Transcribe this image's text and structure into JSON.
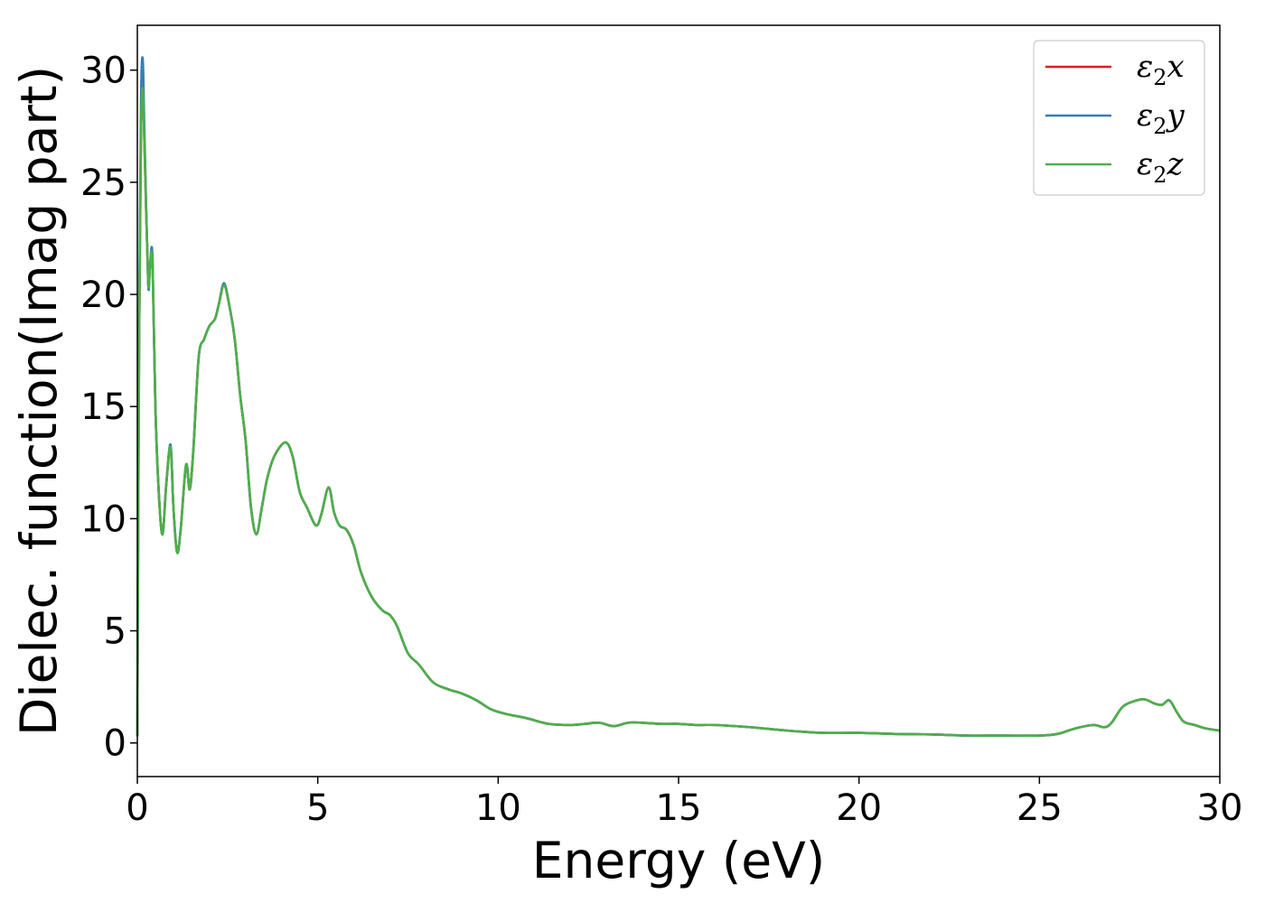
{
  "chart_data": {
    "type": "line",
    "xlabel": "Energy (eV)",
    "ylabel": "Dielec. function(Imag part)",
    "xlim": [
      0,
      30
    ],
    "ylim": [
      -1.5,
      32
    ],
    "xticks": [
      0,
      5,
      10,
      15,
      20,
      25,
      30
    ],
    "yticks": [
      0,
      5,
      10,
      15,
      20,
      25,
      30
    ],
    "grid": false,
    "legend_position": "top-right",
    "series": [
      {
        "name": "x",
        "color": "#e41a1c",
        "x": [
          0,
          0.05,
          0.1,
          0.15,
          0.2,
          0.3,
          0.35,
          0.42,
          0.5,
          0.6,
          0.7,
          0.8,
          0.92,
          1.0,
          1.1,
          1.2,
          1.35,
          1.45,
          1.55,
          1.7,
          1.85,
          2.0,
          2.15,
          2.25,
          2.4,
          2.55,
          2.7,
          2.85,
          3.0,
          3.15,
          3.3,
          3.45,
          3.6,
          3.8,
          4.1,
          4.3,
          4.5,
          4.7,
          4.95,
          5.1,
          5.3,
          5.45,
          5.6,
          5.8,
          6.0,
          6.2,
          6.5,
          6.8,
          7.0,
          7.2,
          7.5,
          7.8,
          8.2,
          8.6,
          9.0,
          9.4,
          9.8,
          10.2,
          10.8,
          11.4,
          12.0,
          12.4,
          12.8,
          13.2,
          13.6,
          14.0,
          14.5,
          15.0,
          15.5,
          16.0,
          17.0,
          18.0,
          19.0,
          20.0,
          21.0,
          22.0,
          23.0,
          24.0,
          25.0,
          25.5,
          26.0,
          26.5,
          26.8,
          27.0,
          27.3,
          27.6,
          27.9,
          28.2,
          28.4,
          28.6,
          28.8,
          29.0,
          29.3,
          29.6,
          30.0
        ],
        "values": [
          0.3,
          18.0,
          27.0,
          29.2,
          26.5,
          20.6,
          21.2,
          21.5,
          15.0,
          11.0,
          9.3,
          11.5,
          13.2,
          10.5,
          8.5,
          9.5,
          12.4,
          11.3,
          13.0,
          17.2,
          18.0,
          18.6,
          18.9,
          19.5,
          20.4,
          19.5,
          18.0,
          15.5,
          13.5,
          10.5,
          9.3,
          10.5,
          11.8,
          12.8,
          13.4,
          12.8,
          11.2,
          10.5,
          9.7,
          10.2,
          11.4,
          10.3,
          9.7,
          9.5,
          8.8,
          7.6,
          6.5,
          5.9,
          5.7,
          5.2,
          4.0,
          3.5,
          2.7,
          2.4,
          2.2,
          1.9,
          1.5,
          1.3,
          1.1,
          0.85,
          0.8,
          0.85,
          0.9,
          0.75,
          0.9,
          0.9,
          0.85,
          0.85,
          0.8,
          0.8,
          0.7,
          0.55,
          0.45,
          0.45,
          0.4,
          0.38,
          0.33,
          0.33,
          0.33,
          0.4,
          0.65,
          0.8,
          0.7,
          0.9,
          1.6,
          1.85,
          1.95,
          1.75,
          1.7,
          1.9,
          1.4,
          0.95,
          0.8,
          0.65,
          0.55
        ]
      },
      {
        "name": "y",
        "color": "#377eb8",
        "x": [
          0,
          0.05,
          0.1,
          0.15,
          0.2,
          0.3,
          0.35,
          0.42,
          0.5,
          0.6,
          0.7,
          0.8,
          0.92,
          1.0,
          1.1,
          1.2,
          1.35,
          1.45,
          1.55,
          1.7,
          1.85,
          2.0,
          2.15,
          2.25,
          2.4,
          2.55,
          2.7,
          2.85,
          3.0,
          3.15,
          3.3,
          3.45,
          3.6,
          3.8,
          4.1,
          4.3,
          4.5,
          4.7,
          4.95,
          5.1,
          5.3,
          5.45,
          5.6,
          5.8,
          6.0,
          6.2,
          6.5,
          6.8,
          7.0,
          7.2,
          7.5,
          7.8,
          8.2,
          8.6,
          9.0,
          9.4,
          9.8,
          10.2,
          10.8,
          11.4,
          12.0,
          12.4,
          12.8,
          13.2,
          13.6,
          14.0,
          14.5,
          15.0,
          15.5,
          16.0,
          17.0,
          18.0,
          19.0,
          20.0,
          21.0,
          22.0,
          23.0,
          24.0,
          25.0,
          25.5,
          26.0,
          26.5,
          26.8,
          27.0,
          27.3,
          27.6,
          27.9,
          28.2,
          28.4,
          28.6,
          28.8,
          29.0,
          29.3,
          29.6,
          30.0
        ],
        "values": [
          0.3,
          19.0,
          28.5,
          30.5,
          27.0,
          20.5,
          21.3,
          21.7,
          15.0,
          11.0,
          9.3,
          11.5,
          13.3,
          10.5,
          8.5,
          9.5,
          12.4,
          11.3,
          13.0,
          17.2,
          18.0,
          18.6,
          18.9,
          19.5,
          20.5,
          19.5,
          18.0,
          15.5,
          13.5,
          10.5,
          9.3,
          10.5,
          11.8,
          12.8,
          13.4,
          12.8,
          11.2,
          10.5,
          9.7,
          10.2,
          11.4,
          10.3,
          9.7,
          9.5,
          8.8,
          7.6,
          6.5,
          5.9,
          5.7,
          5.2,
          4.0,
          3.5,
          2.7,
          2.4,
          2.2,
          1.9,
          1.5,
          1.3,
          1.1,
          0.85,
          0.8,
          0.85,
          0.9,
          0.75,
          0.9,
          0.9,
          0.85,
          0.85,
          0.8,
          0.8,
          0.7,
          0.55,
          0.45,
          0.45,
          0.4,
          0.38,
          0.33,
          0.33,
          0.33,
          0.4,
          0.65,
          0.8,
          0.7,
          0.9,
          1.6,
          1.85,
          1.95,
          1.75,
          1.7,
          1.9,
          1.4,
          0.95,
          0.8,
          0.65,
          0.55
        ]
      },
      {
        "name": "z",
        "color": "#4daf4a",
        "x": [
          0,
          0.05,
          0.1,
          0.15,
          0.2,
          0.3,
          0.35,
          0.42,
          0.5,
          0.6,
          0.7,
          0.8,
          0.92,
          1.0,
          1.1,
          1.2,
          1.35,
          1.45,
          1.55,
          1.7,
          1.85,
          2.0,
          2.15,
          2.25,
          2.4,
          2.55,
          2.7,
          2.85,
          3.0,
          3.15,
          3.3,
          3.45,
          3.6,
          3.8,
          4.1,
          4.3,
          4.5,
          4.7,
          4.95,
          5.1,
          5.3,
          5.45,
          5.6,
          5.8,
          6.0,
          6.2,
          6.5,
          6.8,
          7.0,
          7.2,
          7.5,
          7.8,
          8.2,
          8.6,
          9.0,
          9.4,
          9.8,
          10.2,
          10.8,
          11.4,
          12.0,
          12.4,
          12.8,
          13.2,
          13.6,
          14.0,
          14.5,
          15.0,
          15.5,
          16.0,
          17.0,
          18.0,
          19.0,
          20.0,
          21.0,
          22.0,
          23.0,
          24.0,
          25.0,
          25.5,
          26.0,
          26.5,
          26.8,
          27.0,
          27.3,
          27.6,
          27.9,
          28.2,
          28.4,
          28.6,
          28.8,
          29.0,
          29.3,
          29.6,
          30.0
        ],
        "values": [
          0.3,
          18.0,
          27.0,
          29.2,
          26.5,
          20.6,
          21.2,
          21.5,
          15.0,
          11.0,
          9.3,
          11.5,
          13.2,
          10.5,
          8.5,
          9.5,
          12.4,
          11.3,
          13.0,
          17.2,
          18.0,
          18.6,
          18.9,
          19.5,
          20.4,
          19.5,
          18.0,
          15.5,
          13.5,
          10.5,
          9.3,
          10.5,
          11.8,
          12.8,
          13.4,
          12.8,
          11.2,
          10.5,
          9.7,
          10.2,
          11.4,
          10.3,
          9.7,
          9.5,
          8.8,
          7.6,
          6.5,
          5.9,
          5.7,
          5.2,
          4.0,
          3.5,
          2.7,
          2.4,
          2.2,
          1.9,
          1.5,
          1.3,
          1.1,
          0.85,
          0.8,
          0.85,
          0.9,
          0.75,
          0.9,
          0.9,
          0.85,
          0.85,
          0.8,
          0.8,
          0.7,
          0.55,
          0.45,
          0.45,
          0.4,
          0.38,
          0.33,
          0.33,
          0.33,
          0.4,
          0.65,
          0.8,
          0.7,
          0.9,
          1.6,
          1.85,
          1.95,
          1.75,
          1.7,
          1.9,
          1.4,
          0.95,
          0.8,
          0.65,
          0.55
        ]
      }
    ],
    "legend": {
      "symbol": "ε",
      "subscript": "2",
      "entries": [
        "x",
        "y",
        "z"
      ]
    }
  }
}
